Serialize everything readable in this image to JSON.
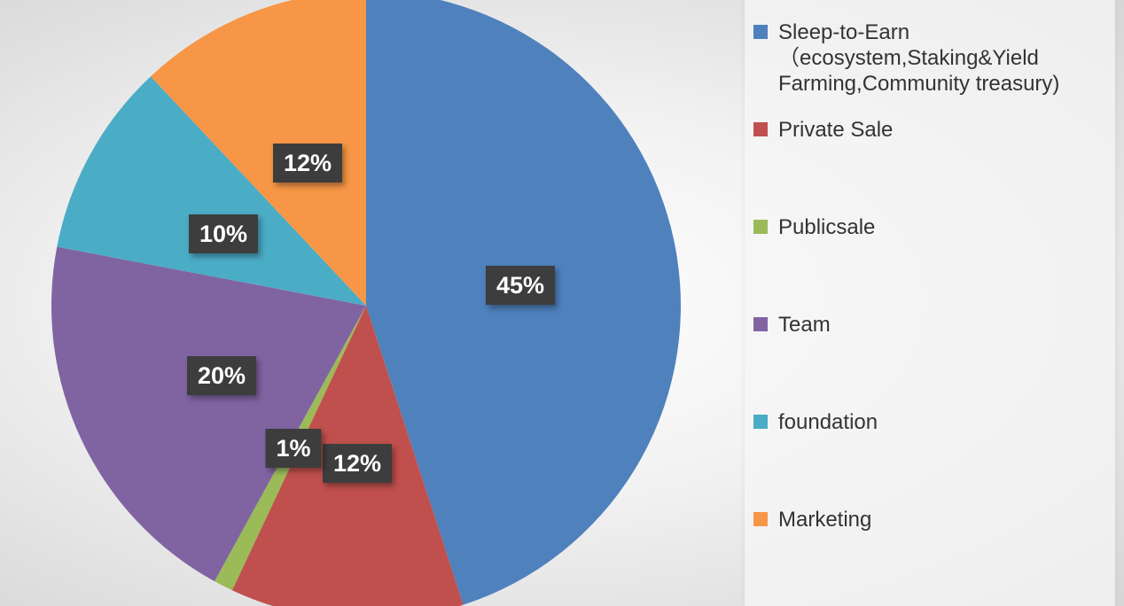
{
  "chart_data": {
    "type": "pie",
    "start_angle": "12 o'clock",
    "direction": "clockwise",
    "legend_position": "right",
    "slices": [
      {
        "name": "Sleep-to-Earn\n  （ecosystem,Staking&Yield\nFarming,Community treasury)",
        "value": 45,
        "label": "45%",
        "color": "#4f81bd"
      },
      {
        "name": "Private Sale",
        "value": 12,
        "label": "12%",
        "color": "#c0504d"
      },
      {
        "name": "Publicsale",
        "value": 1,
        "label": "1%",
        "color": "#9bbb59"
      },
      {
        "name": "Team",
        "value": 20,
        "label": "20%",
        "color": "#8064a2"
      },
      {
        "name": "foundation",
        "value": 10,
        "label": "10%",
        "color": "#4bacc6"
      },
      {
        "name": "Marketing",
        "value": 12,
        "label": "12%",
        "color": "#f79646"
      }
    ]
  }
}
